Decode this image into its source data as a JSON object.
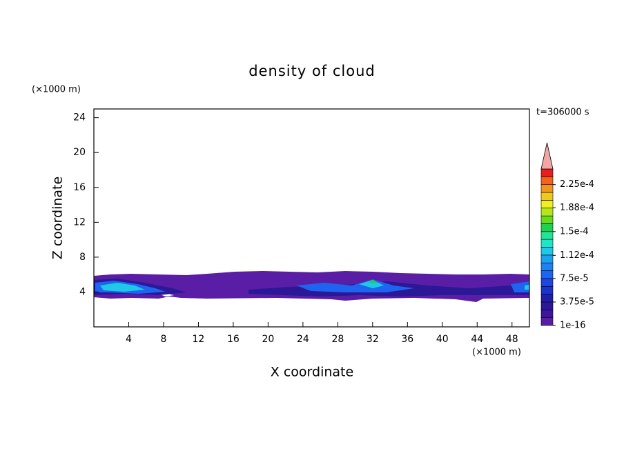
{
  "chart_data": {
    "type": "contour",
    "title": "density of cloud",
    "time_label": "t=306000 s",
    "x_label": "X coordinate",
    "y_label": "Z coordinate",
    "x_unit": "(×1000 m)",
    "y_unit": "(×1000 m)",
    "xlim": [
      0,
      50
    ],
    "xticks": [
      4,
      8,
      12,
      16,
      20,
      24,
      28,
      32,
      36,
      40,
      44,
      48
    ],
    "ylim": [
      0,
      25
    ],
    "yticks": [
      4,
      8,
      12,
      16,
      20,
      24
    ],
    "colorbar": {
      "lim": [
        1e-16,
        0.00025
      ],
      "colors": [
        "#5a1ea6",
        "#3c14a0",
        "#2a1896",
        "#1e1eaa",
        "#1e32c8",
        "#1e46e0",
        "#1e64f0",
        "#1e82f0",
        "#1ea0f0",
        "#1ec8e6",
        "#1ee6c8",
        "#1ee696",
        "#1ed250",
        "#64dc1e",
        "#b4e61e",
        "#f0f01e",
        "#f0c81e",
        "#f0961e",
        "#f0641e",
        "#e61e1e"
      ],
      "extend_color": "#f4a6a6",
      "ticks": [
        {
          "value": 1e-16,
          "label": "1e-16"
        },
        {
          "value": 3.75e-05,
          "label": "3.75e-5"
        },
        {
          "value": 7.5e-05,
          "label": "7.5e-5"
        },
        {
          "value": 0.000112,
          "label": "1.12e-4"
        },
        {
          "value": 0.00015,
          "label": "1.5e-4"
        },
        {
          "value": 0.000188,
          "label": "1.88e-4"
        },
        {
          "value": 0.000225,
          "label": "2.25e-4"
        }
      ]
    }
  }
}
